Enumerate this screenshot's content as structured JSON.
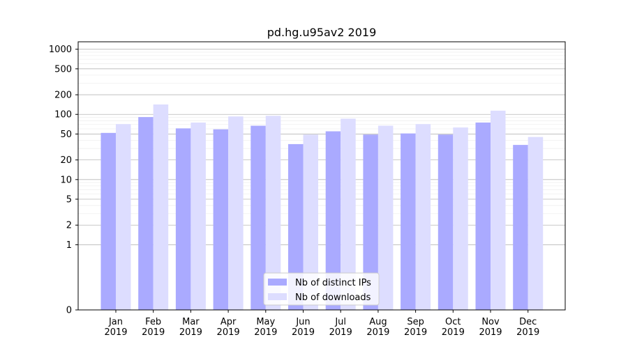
{
  "chart_data": {
    "type": "bar",
    "title": "pd.hg.u95av2 2019",
    "xlabel": "",
    "ylabel": "",
    "scale": "symlog",
    "ylim": [
      0,
      1300
    ],
    "grid": true,
    "legend_position": "bottom-center",
    "categories": [
      "Jan\n2019",
      "Feb\n2019",
      "Mar\n2019",
      "Apr\n2019",
      "May\n2019",
      "Jun\n2019",
      "Jul\n2019",
      "Aug\n2019",
      "Sep\n2019",
      "Oct\n2019",
      "Nov\n2019",
      "Dec\n2019"
    ],
    "yticks": [
      0,
      1,
      2,
      5,
      10,
      20,
      50,
      100,
      200,
      500,
      1000
    ],
    "series": [
      {
        "name": "Nb of distinct IPs",
        "color": "#aaaaff",
        "values": [
          52,
          91,
          61,
          59,
          67,
          35,
          55,
          49,
          51,
          49,
          75,
          34
        ]
      },
      {
        "name": "Nb of downloads",
        "color": "#ddddff",
        "values": [
          71,
          142,
          75,
          93,
          95,
          49,
          86,
          67,
          71,
          63,
          114,
          45
        ]
      }
    ]
  }
}
